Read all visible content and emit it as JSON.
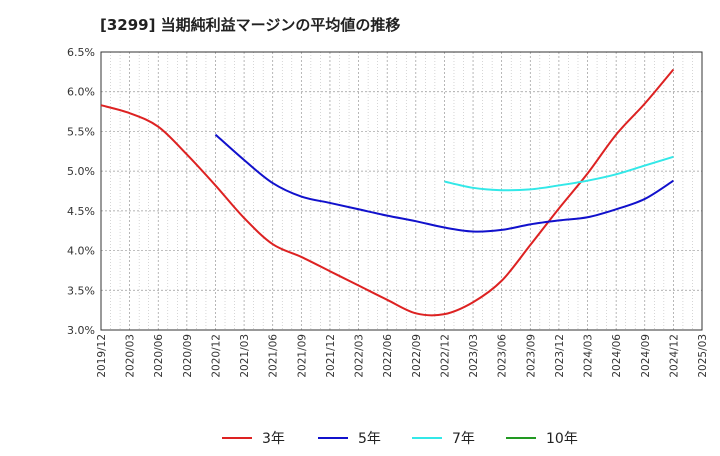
{
  "chart_data": {
    "type": "line",
    "title": "[3299]  当期純利益マージンの平均値の推移",
    "xlabel": "",
    "ylabel": "",
    "x_ticks": [
      "2019/12",
      "2020/03",
      "2020/06",
      "2020/09",
      "2020/12",
      "2021/03",
      "2021/06",
      "2021/09",
      "2021/12",
      "2022/03",
      "2022/06",
      "2022/09",
      "2022/12",
      "2023/03",
      "2023/06",
      "2023/09",
      "2023/12",
      "2024/03",
      "2024/06",
      "2024/09",
      "2024/12",
      "2025/03"
    ],
    "y_ticks": [
      "3.0%",
      "3.5%",
      "4.0%",
      "4.5%",
      "5.0%",
      "5.5%",
      "6.0%",
      "6.5%"
    ],
    "ylim": [
      3.0,
      6.5
    ],
    "grid": true,
    "legend_position": "bottom",
    "series": [
      {
        "name": "3年",
        "color": "#dd2222",
        "x": [
          "2019/12",
          "2020/03",
          "2020/06",
          "2020/09",
          "2020/12",
          "2021/03",
          "2021/06",
          "2021/09",
          "2021/12",
          "2022/03",
          "2022/06",
          "2022/09",
          "2022/12",
          "2023/03",
          "2023/06",
          "2023/09",
          "2023/12",
          "2024/03",
          "2024/06",
          "2024/09",
          "2024/12"
        ],
        "values": [
          5.83,
          5.73,
          5.56,
          5.21,
          4.82,
          4.41,
          4.08,
          3.92,
          3.74,
          3.56,
          3.38,
          3.21,
          3.2,
          3.35,
          3.62,
          4.07,
          4.53,
          4.97,
          5.46,
          5.85,
          6.28
        ]
      },
      {
        "name": "5年",
        "color": "#1111cc",
        "x": [
          "2020/12",
          "2021/03",
          "2021/06",
          "2021/09",
          "2021/12",
          "2022/03",
          "2022/06",
          "2022/09",
          "2022/12",
          "2023/03",
          "2023/06",
          "2023/09",
          "2023/12",
          "2024/03",
          "2024/06",
          "2024/09",
          "2024/12"
        ],
        "values": [
          5.46,
          5.14,
          4.85,
          4.68,
          4.6,
          4.52,
          4.44,
          4.37,
          4.29,
          4.24,
          4.26,
          4.33,
          4.38,
          4.42,
          4.52,
          4.65,
          4.88
        ]
      },
      {
        "name": "7年",
        "color": "#33e8e8",
        "x": [
          "2022/12",
          "2023/03",
          "2023/06",
          "2023/09",
          "2023/12",
          "2024/03",
          "2024/06",
          "2024/09",
          "2024/12"
        ],
        "values": [
          4.87,
          4.79,
          4.76,
          4.77,
          4.82,
          4.88,
          4.96,
          5.07,
          5.18
        ]
      },
      {
        "name": "10年",
        "color": "#229922",
        "x": [],
        "values": []
      }
    ]
  }
}
